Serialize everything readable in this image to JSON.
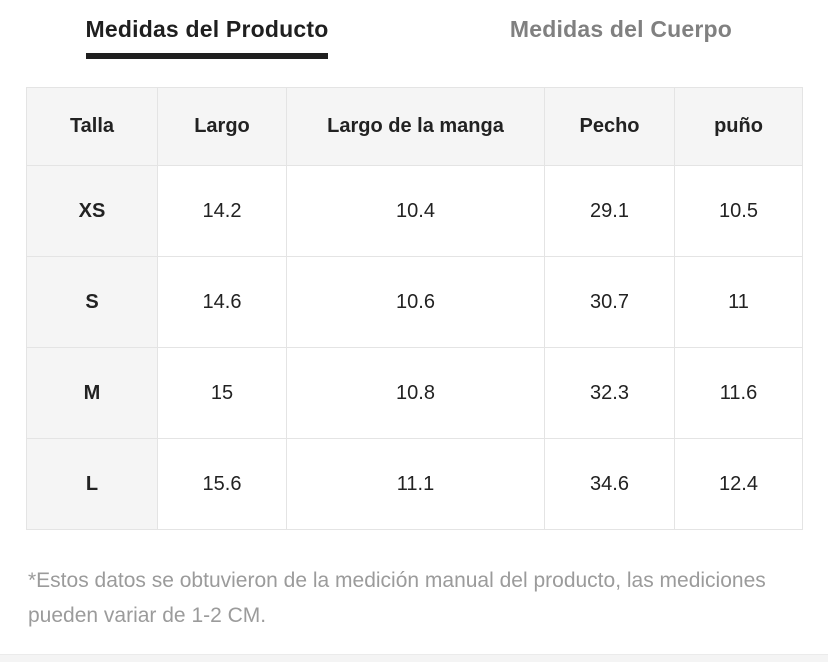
{
  "tabs": [
    {
      "label": "Medidas del Producto",
      "active": true
    },
    {
      "label": "Medidas del Cuerpo",
      "active": false
    }
  ],
  "table": {
    "headers": [
      "Talla",
      "Largo",
      "Largo de la manga",
      "Pecho",
      "puño"
    ],
    "rows": [
      {
        "size": "XS",
        "values": [
          "14.2",
          "10.4",
          "29.1",
          "10.5"
        ]
      },
      {
        "size": "S",
        "values": [
          "14.6",
          "10.6",
          "30.7",
          "11"
        ]
      },
      {
        "size": "M",
        "values": [
          "15",
          "10.8",
          "32.3",
          "11.6"
        ]
      },
      {
        "size": "L",
        "values": [
          "15.6",
          "11.1",
          "34.6",
          "12.4"
        ]
      }
    ]
  },
  "footnote": "*Estos datos se obtuvieron de la medición manual del producto, las mediciones pueden variar de 1-2 CM.",
  "colors": {
    "active_tab": "#1f1f1f",
    "inactive_tab": "#808080",
    "table_border": "#e4e4e4",
    "shaded_cell_bg": "#f5f5f5",
    "footnote_text": "#9b9b9b",
    "bottom_strip": "#f4f4f4"
  }
}
